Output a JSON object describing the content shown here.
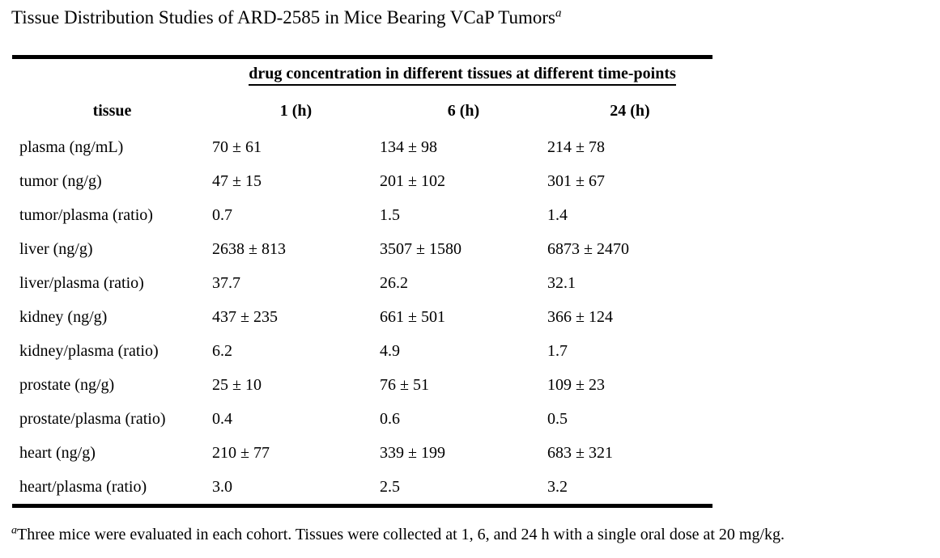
{
  "title": {
    "text": "Tissue Distribution Studies of ARD-2585 in Mice Bearing VCaP Tumors",
    "superscript": "a"
  },
  "table": {
    "spanner_header": "drug concentration in different tissues at different time-points",
    "columns": [
      "tissue",
      "1 (h)",
      "6 (h)",
      "24 (h)"
    ],
    "rows": [
      {
        "tissue": "plasma (ng/mL)",
        "h1": "70 ± 61",
        "h6": "134 ± 98",
        "h24": "214 ± 78"
      },
      {
        "tissue": "tumor (ng/g)",
        "h1": "47 ± 15",
        "h6": "201 ± 102",
        "h24": "301 ± 67"
      },
      {
        "tissue": "tumor/plasma (ratio)",
        "h1": "0.7",
        "h6": "1.5",
        "h24": "1.4"
      },
      {
        "tissue": "liver (ng/g)",
        "h1": "2638 ± 813",
        "h6": "3507 ± 1580",
        "h24": "6873 ± 2470"
      },
      {
        "tissue": "liver/plasma (ratio)",
        "h1": "37.7",
        "h6": "26.2",
        "h24": "32.1"
      },
      {
        "tissue": "kidney (ng/g)",
        "h1": "437 ± 235",
        "h6": "661 ± 501",
        "h24": "366 ± 124"
      },
      {
        "tissue": "kidney/plasma (ratio)",
        "h1": "6.2",
        "h6": "4.9",
        "h24": "1.7"
      },
      {
        "tissue": "prostate (ng/g)",
        "h1": "25 ± 10",
        "h6": "76 ± 51",
        "h24": "109 ± 23"
      },
      {
        "tissue": "prostate/plasma (ratio)",
        "h1": "0.4",
        "h6": "0.6",
        "h24": "0.5"
      },
      {
        "tissue": "heart (ng/g)",
        "h1": "210 ± 77",
        "h6": "339 ± 199",
        "h24": "683 ± 321"
      },
      {
        "tissue": "heart/plasma (ratio)",
        "h1": "3.0",
        "h6": "2.5",
        "h24": "3.2"
      }
    ]
  },
  "footnote": {
    "marker": "a",
    "text": "Three mice were evaluated in each cohort. Tissues were collected at 1, 6, and 24 h with a single oral dose at 20 mg/kg."
  }
}
